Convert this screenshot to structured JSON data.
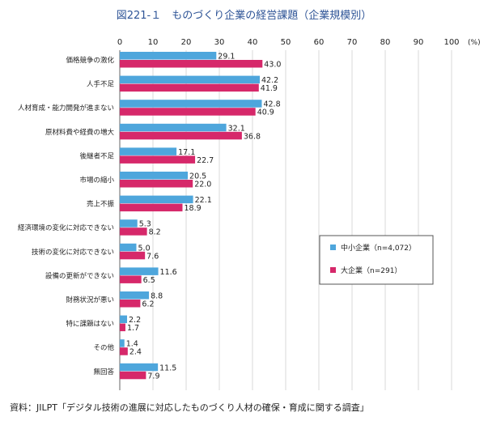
{
  "title": "図221-１　ものづくり企業の経営課題（企業規模別）",
  "source": "資料：JILPT「デジタル技術の進展に対応したものづくり人材の確保・育成に関する調査」",
  "chart_data": {
    "type": "bar",
    "orientation": "horizontal",
    "categories": [
      "価格競争の激化",
      "人手不足",
      "人材育成・能力開発が進まない",
      "原材料費や経費の増大",
      "後継者不足",
      "市場の縮小",
      "売上不振",
      "経済環境の変化に対応できない",
      "技術の変化に対応できない",
      "設備の更新ができない",
      "財務状況が悪い",
      "特に課題はない",
      "その他",
      "無回答"
    ],
    "series": [
      {
        "name": "中小企業（n=4,072）",
        "color": "#4ea6dc",
        "values": [
          29.1,
          42.2,
          42.8,
          32.1,
          17.1,
          20.5,
          22.1,
          5.3,
          5.0,
          11.6,
          8.8,
          2.2,
          1.4,
          11.5
        ]
      },
      {
        "name": "大企業（n=291）",
        "color": "#d6286a",
        "values": [
          43.0,
          41.9,
          40.9,
          36.8,
          22.7,
          22.0,
          18.9,
          8.2,
          7.6,
          6.5,
          6.2,
          1.7,
          2.4,
          7.9
        ]
      }
    ],
    "xlim": [
      0,
      100
    ],
    "ticks": [
      "0",
      "10",
      "20",
      "30",
      "40",
      "50",
      "60",
      "70",
      "80",
      "90",
      "100"
    ],
    "unit": "(%)",
    "grid": true,
    "legend_position": "right-middle"
  }
}
